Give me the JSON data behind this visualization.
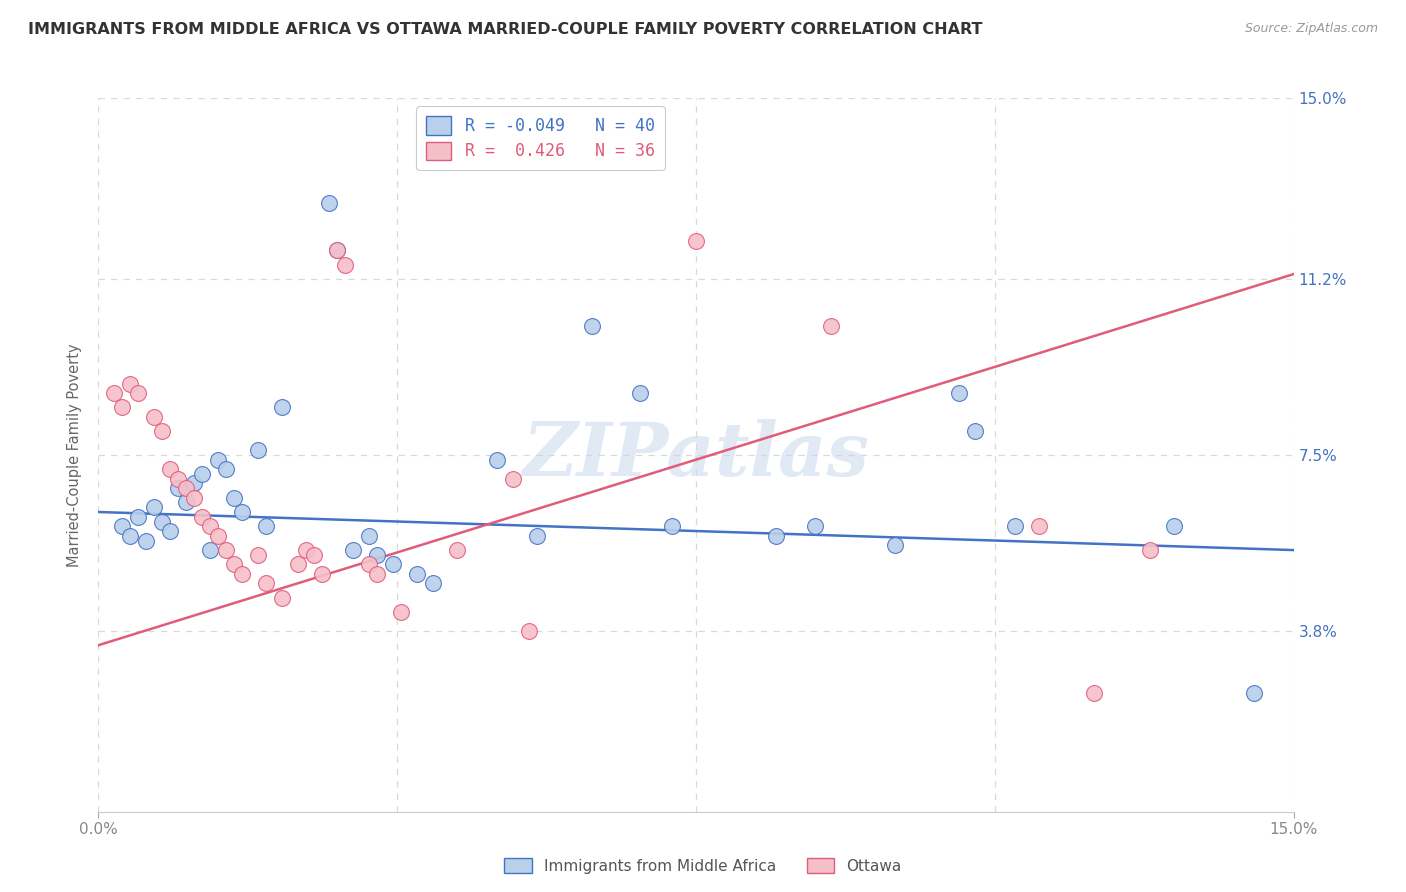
{
  "title": "IMMIGRANTS FROM MIDDLE AFRICA VS OTTAWA MARRIED-COUPLE FAMILY POVERTY CORRELATION CHART",
  "source": "Source: ZipAtlas.com",
  "ylabel": "Married-Couple Family Poverty",
  "y_ticks": [
    3.8,
    7.5,
    11.2,
    15.0
  ],
  "y_tick_labels": [
    "3.8%",
    "7.5%",
    "11.2%",
    "15.0%"
  ],
  "xlim": [
    0.0,
    15.0
  ],
  "ylim": [
    0.0,
    15.0
  ],
  "watermark": "ZIPatlas",
  "legend_entry1": "R = -0.049   N = 40",
  "legend_entry2": "R =  0.426   N = 36",
  "series1_color": "#b8d0ea",
  "series2_color": "#f5bfc9",
  "series1_label": "Immigrants from Middle Africa",
  "series2_label": "Ottawa",
  "blue_scatter": [
    [
      0.3,
      6.0
    ],
    [
      0.4,
      5.8
    ],
    [
      0.5,
      6.2
    ],
    [
      0.6,
      5.7
    ],
    [
      0.7,
      6.4
    ],
    [
      0.8,
      6.1
    ],
    [
      0.9,
      5.9
    ],
    [
      1.0,
      6.8
    ],
    [
      1.1,
      6.5
    ],
    [
      1.2,
      6.9
    ],
    [
      1.3,
      7.1
    ],
    [
      1.4,
      5.5
    ],
    [
      1.5,
      7.4
    ],
    [
      1.6,
      7.2
    ],
    [
      1.7,
      6.6
    ],
    [
      1.8,
      6.3
    ],
    [
      2.0,
      7.6
    ],
    [
      2.1,
      6.0
    ],
    [
      2.3,
      8.5
    ],
    [
      2.9,
      12.8
    ],
    [
      3.0,
      11.8
    ],
    [
      3.2,
      5.5
    ],
    [
      3.4,
      5.8
    ],
    [
      3.5,
      5.4
    ],
    [
      3.7,
      5.2
    ],
    [
      4.0,
      5.0
    ],
    [
      4.2,
      4.8
    ],
    [
      5.0,
      7.4
    ],
    [
      5.5,
      5.8
    ],
    [
      6.2,
      10.2
    ],
    [
      6.8,
      8.8
    ],
    [
      7.2,
      6.0
    ],
    [
      8.5,
      5.8
    ],
    [
      9.0,
      6.0
    ],
    [
      10.0,
      5.6
    ],
    [
      10.8,
      8.8
    ],
    [
      11.0,
      8.0
    ],
    [
      11.5,
      6.0
    ],
    [
      13.5,
      6.0
    ],
    [
      14.5,
      2.5
    ]
  ],
  "pink_scatter": [
    [
      0.2,
      8.8
    ],
    [
      0.3,
      8.5
    ],
    [
      0.4,
      9.0
    ],
    [
      0.5,
      8.8
    ],
    [
      0.7,
      8.3
    ],
    [
      0.8,
      8.0
    ],
    [
      0.9,
      7.2
    ],
    [
      1.0,
      7.0
    ],
    [
      1.1,
      6.8
    ],
    [
      1.2,
      6.6
    ],
    [
      1.3,
      6.2
    ],
    [
      1.4,
      6.0
    ],
    [
      1.5,
      5.8
    ],
    [
      1.6,
      5.5
    ],
    [
      1.7,
      5.2
    ],
    [
      1.8,
      5.0
    ],
    [
      2.0,
      5.4
    ],
    [
      2.1,
      4.8
    ],
    [
      2.3,
      4.5
    ],
    [
      2.5,
      5.2
    ],
    [
      2.6,
      5.5
    ],
    [
      2.7,
      5.4
    ],
    [
      2.8,
      5.0
    ],
    [
      3.0,
      11.8
    ],
    [
      3.1,
      11.5
    ],
    [
      3.4,
      5.2
    ],
    [
      3.5,
      5.0
    ],
    [
      3.8,
      4.2
    ],
    [
      4.5,
      5.5
    ],
    [
      5.2,
      7.0
    ],
    [
      5.4,
      3.8
    ],
    [
      7.5,
      12.0
    ],
    [
      9.2,
      10.2
    ],
    [
      11.8,
      6.0
    ],
    [
      12.5,
      2.5
    ],
    [
      13.2,
      5.5
    ]
  ],
  "blue_line_x": [
    0.0,
    15.0
  ],
  "blue_line_y": [
    6.3,
    5.5
  ],
  "pink_line_x": [
    0.0,
    15.0
  ],
  "pink_line_y": [
    3.5,
    11.3
  ],
  "line_color_blue": "#4472c4",
  "line_color_pink": "#e05c7a",
  "background_color": "#ffffff",
  "grid_color": "#d8d8d8"
}
